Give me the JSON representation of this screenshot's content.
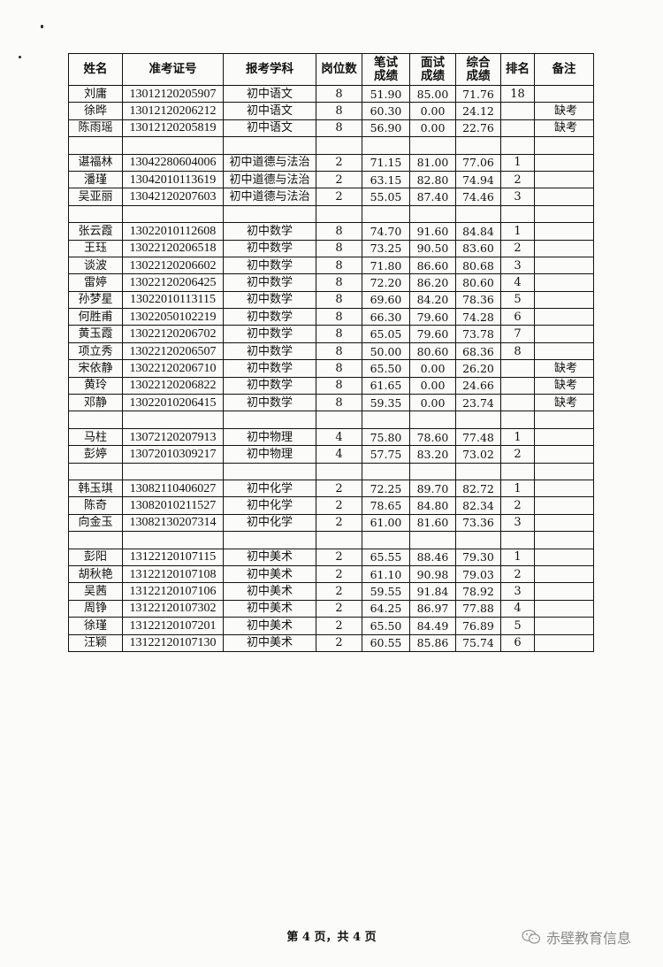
{
  "table": {
    "headers": [
      "姓名",
      "准考证号",
      "报考学科",
      "岗位数",
      "笔试\n成绩",
      "面试\n成绩",
      "综合\n成绩",
      "排名",
      "备注"
    ],
    "rows": [
      [
        "刘庸",
        "13012120205907",
        "初中语文",
        "8",
        "51.90",
        "85.00",
        "71.76",
        "18",
        ""
      ],
      [
        "徐晔",
        "13012120206212",
        "初中语文",
        "8",
        "60.30",
        "0.00",
        "24.12",
        "",
        "缺考"
      ],
      [
        "陈雨瑶",
        "13012120205819",
        "初中语文",
        "8",
        "56.90",
        "0.00",
        "22.76",
        "",
        "缺考"
      ],
      [],
      [
        "谌福林",
        "13042280604006",
        "初中道德与法治",
        "2",
        "71.15",
        "81.00",
        "77.06",
        "1",
        ""
      ],
      [
        "潘瑾",
        "13042010113619",
        "初中道德与法治",
        "2",
        "63.15",
        "82.80",
        "74.94",
        "2",
        ""
      ],
      [
        "吴亚丽",
        "13042120207603",
        "初中道德与法治",
        "2",
        "55.05",
        "87.40",
        "74.46",
        "3",
        ""
      ],
      [],
      [
        "张云霞",
        "13022010112608",
        "初中数学",
        "8",
        "74.70",
        "91.60",
        "84.84",
        "1",
        ""
      ],
      [
        "王珏",
        "13022120206518",
        "初中数学",
        "8",
        "73.25",
        "90.50",
        "83.60",
        "2",
        ""
      ],
      [
        "谈波",
        "13022120206602",
        "初中数学",
        "8",
        "71.80",
        "86.60",
        "80.68",
        "3",
        ""
      ],
      [
        "雷婷",
        "13022120206425",
        "初中数学",
        "8",
        "72.20",
        "86.20",
        "80.60",
        "4",
        ""
      ],
      [
        "孙梦星",
        "13022010113115",
        "初中数学",
        "8",
        "69.60",
        "84.20",
        "78.36",
        "5",
        ""
      ],
      [
        "何胜甫",
        "13022050102219",
        "初中数学",
        "8",
        "66.30",
        "79.60",
        "74.28",
        "6",
        ""
      ],
      [
        "黄玉霞",
        "13022120206702",
        "初中数学",
        "8",
        "65.05",
        "79.60",
        "73.78",
        "7",
        ""
      ],
      [
        "项立秀",
        "13022120206507",
        "初中数学",
        "8",
        "50.00",
        "80.60",
        "68.36",
        "8",
        ""
      ],
      [
        "宋依静",
        "13022120206710",
        "初中数学",
        "8",
        "65.50",
        "0.00",
        "26.20",
        "",
        "缺考"
      ],
      [
        "黄玲",
        "13022120206822",
        "初中数学",
        "8",
        "61.65",
        "0.00",
        "24.66",
        "",
        "缺考"
      ],
      [
        "邓静",
        "13022010206415",
        "初中数学",
        "8",
        "59.35",
        "0.00",
        "23.74",
        "",
        "缺考"
      ],
      [],
      [
        "马柱",
        "13072120207913",
        "初中物理",
        "4",
        "75.80",
        "78.60",
        "77.48",
        "1",
        ""
      ],
      [
        "彭婷",
        "13072010309217",
        "初中物理",
        "4",
        "57.75",
        "83.20",
        "73.02",
        "2",
        ""
      ],
      [],
      [
        "韩玉琪",
        "13082110406027",
        "初中化学",
        "2",
        "72.25",
        "89.70",
        "82.72",
        "1",
        ""
      ],
      [
        "陈奇",
        "13082010211527",
        "初中化学",
        "2",
        "78.65",
        "84.80",
        "82.34",
        "2",
        ""
      ],
      [
        "向金玉",
        "13082130207314",
        "初中化学",
        "2",
        "61.00",
        "81.60",
        "73.36",
        "3",
        ""
      ],
      [],
      [
        "彭阳",
        "13122120107115",
        "初中美术",
        "2",
        "65.55",
        "88.46",
        "79.30",
        "1",
        ""
      ],
      [
        "胡秋艳",
        "13122120107108",
        "初中美术",
        "2",
        "61.10",
        "90.98",
        "79.03",
        "2",
        ""
      ],
      [
        "吴茜",
        "13122120107106",
        "初中美术",
        "2",
        "59.55",
        "91.84",
        "78.92",
        "3",
        ""
      ],
      [
        "周铮",
        "13122120107302",
        "初中美术",
        "2",
        "64.25",
        "86.97",
        "77.88",
        "4",
        ""
      ],
      [
        "徐瑾",
        "13122120107201",
        "初中美术",
        "2",
        "65.50",
        "84.49",
        "76.89",
        "5",
        ""
      ],
      [
        "汪颖",
        "13122120107130",
        "初中美术",
        "2",
        "60.55",
        "85.86",
        "75.74",
        "6",
        ""
      ]
    ]
  },
  "footer": {
    "page_label": "第 4 页，共 4 页"
  },
  "watermark": {
    "text": "赤壁教育信息",
    "icon": "wechat-icon"
  }
}
